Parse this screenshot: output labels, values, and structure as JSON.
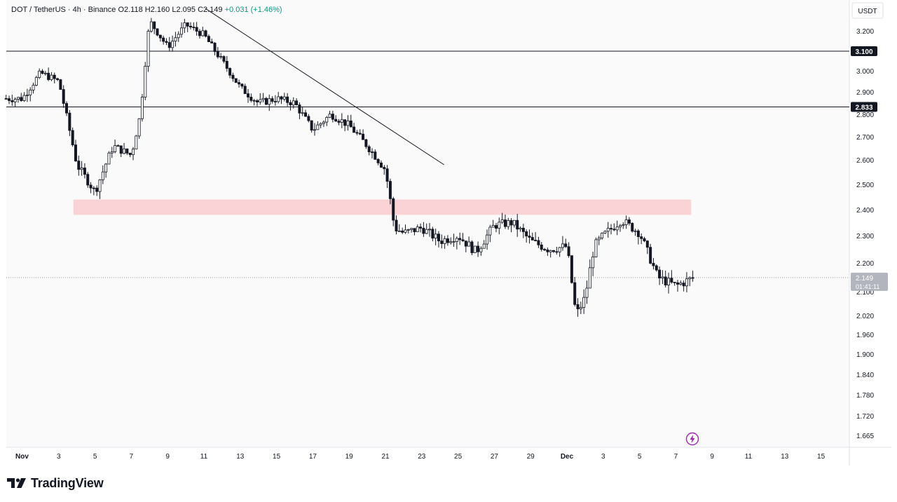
{
  "header": {
    "symbol": "DOT / TetherUS · 4h · Binance",
    "open": "O2.118",
    "high": "H2.160",
    "low": "L2.095",
    "close": "C2.149",
    "change": "+0.031 (+1.46%)"
  },
  "currency_label": "USDT",
  "brand": "TradingView",
  "colors": {
    "background_plot": "#fafafa",
    "candle": "#131722",
    "zone": "#f8c6c8",
    "price_badge": "#b2b5be"
  },
  "chart_data": {
    "type": "candlestick",
    "symbol": "DOT/USDT",
    "interval": "4h",
    "y_range": [
      1.62,
      3.3
    ],
    "y_ticks": [
      "3.200",
      "3.000",
      "2.900",
      "2.800",
      "2.700",
      "2.600",
      "2.500",
      "2.400",
      "2.300",
      "2.200",
      "2.100",
      "2.020",
      "1.960",
      "1.900",
      "1.840",
      "1.780",
      "1.720",
      "1.665"
    ],
    "x_ticks": [
      "Nov",
      "3",
      "5",
      "7",
      "9",
      "11",
      "13",
      "15",
      "17",
      "19",
      "21",
      "23",
      "25",
      "27",
      "29",
      "Dec",
      "3",
      "5",
      "7",
      "9",
      "11",
      "13",
      "15"
    ],
    "horizontal_lines": [
      {
        "label": "3.100",
        "price": 3.1
      },
      {
        "label": "2.833",
        "price": 2.833
      }
    ],
    "trendline": {
      "from": {
        "date": "Nov 11",
        "price": 3.31
      },
      "to": {
        "date": "Nov 24",
        "price": 2.58
      }
    },
    "zone": {
      "from_date": "Nov 4",
      "to_date": "Dec 8",
      "top": 2.44,
      "bottom": 2.38
    },
    "last_price": {
      "price": "2.149",
      "countdown": "01:41:11"
    },
    "path_keypoints": [
      {
        "date": "Nov 1",
        "price": 2.87
      },
      {
        "date": "Nov 2",
        "price": 2.99
      },
      {
        "date": "Nov 3",
        "price": 2.95
      },
      {
        "date": "Nov 4",
        "price": 2.58
      },
      {
        "date": "Nov 5",
        "price": 2.47
      },
      {
        "date": "Nov 6",
        "price": 2.66
      },
      {
        "date": "Nov 7",
        "price": 2.62
      },
      {
        "date": "Nov 7.5",
        "price": 2.8
      },
      {
        "date": "Nov 8",
        "price": 3.25
      },
      {
        "date": "Nov 9",
        "price": 3.12
      },
      {
        "date": "Nov 10",
        "price": 3.23
      },
      {
        "date": "Nov 11",
        "price": 3.18
      },
      {
        "date": "Nov 12",
        "price": 3.05
      },
      {
        "date": "Nov 13",
        "price": 2.92
      },
      {
        "date": "Nov 14",
        "price": 2.85
      },
      {
        "date": "Nov 15",
        "price": 2.87
      },
      {
        "date": "Nov 16",
        "price": 2.85
      },
      {
        "date": "Nov 17",
        "price": 2.73
      },
      {
        "date": "Nov 18",
        "price": 2.8
      },
      {
        "date": "Nov 19",
        "price": 2.75
      },
      {
        "date": "Nov 20",
        "price": 2.66
      },
      {
        "date": "Nov 21",
        "price": 2.56
      },
      {
        "date": "Nov 21.5",
        "price": 2.33
      },
      {
        "date": "Nov 22",
        "price": 2.31
      },
      {
        "date": "Nov 23",
        "price": 2.33
      },
      {
        "date": "Nov 24",
        "price": 2.28
      },
      {
        "date": "Nov 25",
        "price": 2.3
      },
      {
        "date": "Nov 26",
        "price": 2.24
      },
      {
        "date": "Nov 27",
        "price": 2.34
      },
      {
        "date": "Nov 28",
        "price": 2.35
      },
      {
        "date": "Nov 29",
        "price": 2.28
      },
      {
        "date": "Nov 30",
        "price": 2.25
      },
      {
        "date": "Dec 1",
        "price": 2.26
      },
      {
        "date": "Dec 1.5",
        "price": 2.02
      },
      {
        "date": "Dec 2",
        "price": 2.08
      },
      {
        "date": "Dec 2.5",
        "price": 2.26
      },
      {
        "date": "Dec 3",
        "price": 2.3
      },
      {
        "date": "Dec 4",
        "price": 2.36
      },
      {
        "date": "Dec 5",
        "price": 2.31
      },
      {
        "date": "Dec 6",
        "price": 2.15
      },
      {
        "date": "Dec 7",
        "price": 2.12
      },
      {
        "date": "Dec 8",
        "price": 2.149
      }
    ]
  }
}
